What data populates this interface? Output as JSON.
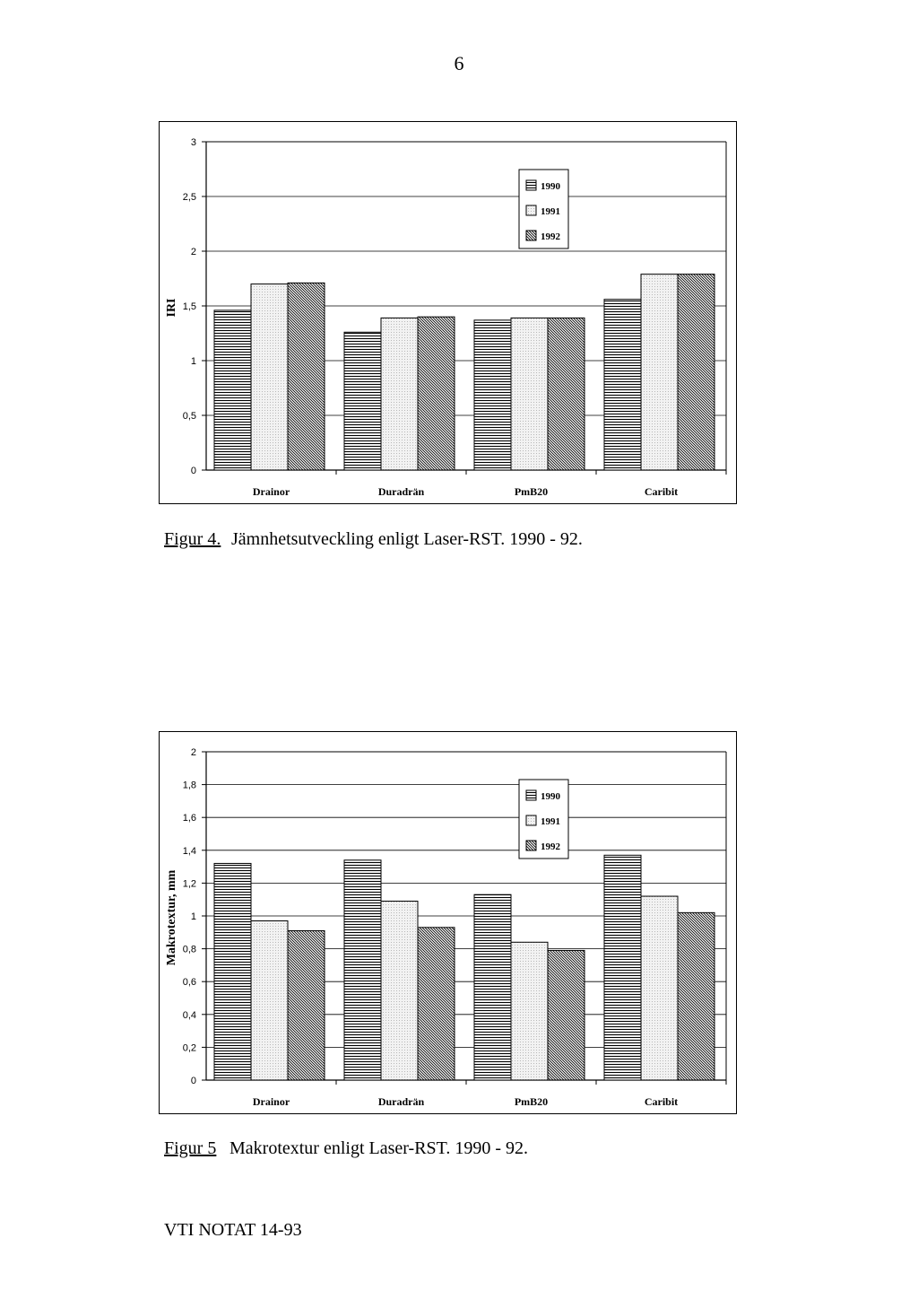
{
  "page": {
    "number": "6",
    "footer": "VTI NOTAT 14-93"
  },
  "captions": [
    {
      "label": "Figur 4.",
      "text": "Jämnhetsutveckling enligt Laser-RST. 1990 - 92."
    },
    {
      "label": "Figur 5",
      "text": "Makrotextur enligt Laser-RST. 1990 - 92."
    }
  ],
  "chart_data": [
    {
      "type": "bar",
      "ylabel": "IRI",
      "xlabel": "",
      "categories": [
        "Drainor",
        "Duradrän",
        "PmB20",
        "Caribit"
      ],
      "series": [
        {
          "name": "1990",
          "values": [
            1.46,
            1.26,
            1.37,
            1.56
          ]
        },
        {
          "name": "1991",
          "values": [
            1.7,
            1.39,
            1.39,
            1.79
          ]
        },
        {
          "name": "1992",
          "values": [
            1.71,
            1.4,
            1.39,
            1.79
          ]
        }
      ],
      "ylim": [
        0,
        3
      ],
      "yticks": [
        0,
        0.5,
        1,
        1.5,
        2,
        2.5,
        3
      ],
      "ytick_labels": [
        "0",
        "0,5",
        "1",
        "1,5",
        "2",
        "2,5",
        "3"
      ],
      "grid": true,
      "legend": "top-right"
    },
    {
      "type": "bar",
      "ylabel": "Makrotextur, mm",
      "xlabel": "",
      "categories": [
        "Drainor",
        "Duradrän",
        "PmB20",
        "Caribit"
      ],
      "series": [
        {
          "name": "1990",
          "values": [
            1.32,
            1.34,
            1.13,
            1.37
          ]
        },
        {
          "name": "1991",
          "values": [
            0.97,
            1.09,
            0.84,
            1.12
          ]
        },
        {
          "name": "1992",
          "values": [
            0.91,
            0.93,
            0.79,
            1.02
          ]
        }
      ],
      "ylim": [
        0,
        2
      ],
      "yticks": [
        0,
        0.2,
        0.4,
        0.6,
        0.8,
        1,
        1.2,
        1.4,
        1.6,
        1.8,
        2
      ],
      "ytick_labels": [
        "0",
        "0,2",
        "0,4",
        "0,6",
        "0,8",
        "1",
        "1,2",
        "1,4",
        "1,6",
        "1,8",
        "2"
      ],
      "grid": true,
      "legend": "top-right"
    }
  ]
}
